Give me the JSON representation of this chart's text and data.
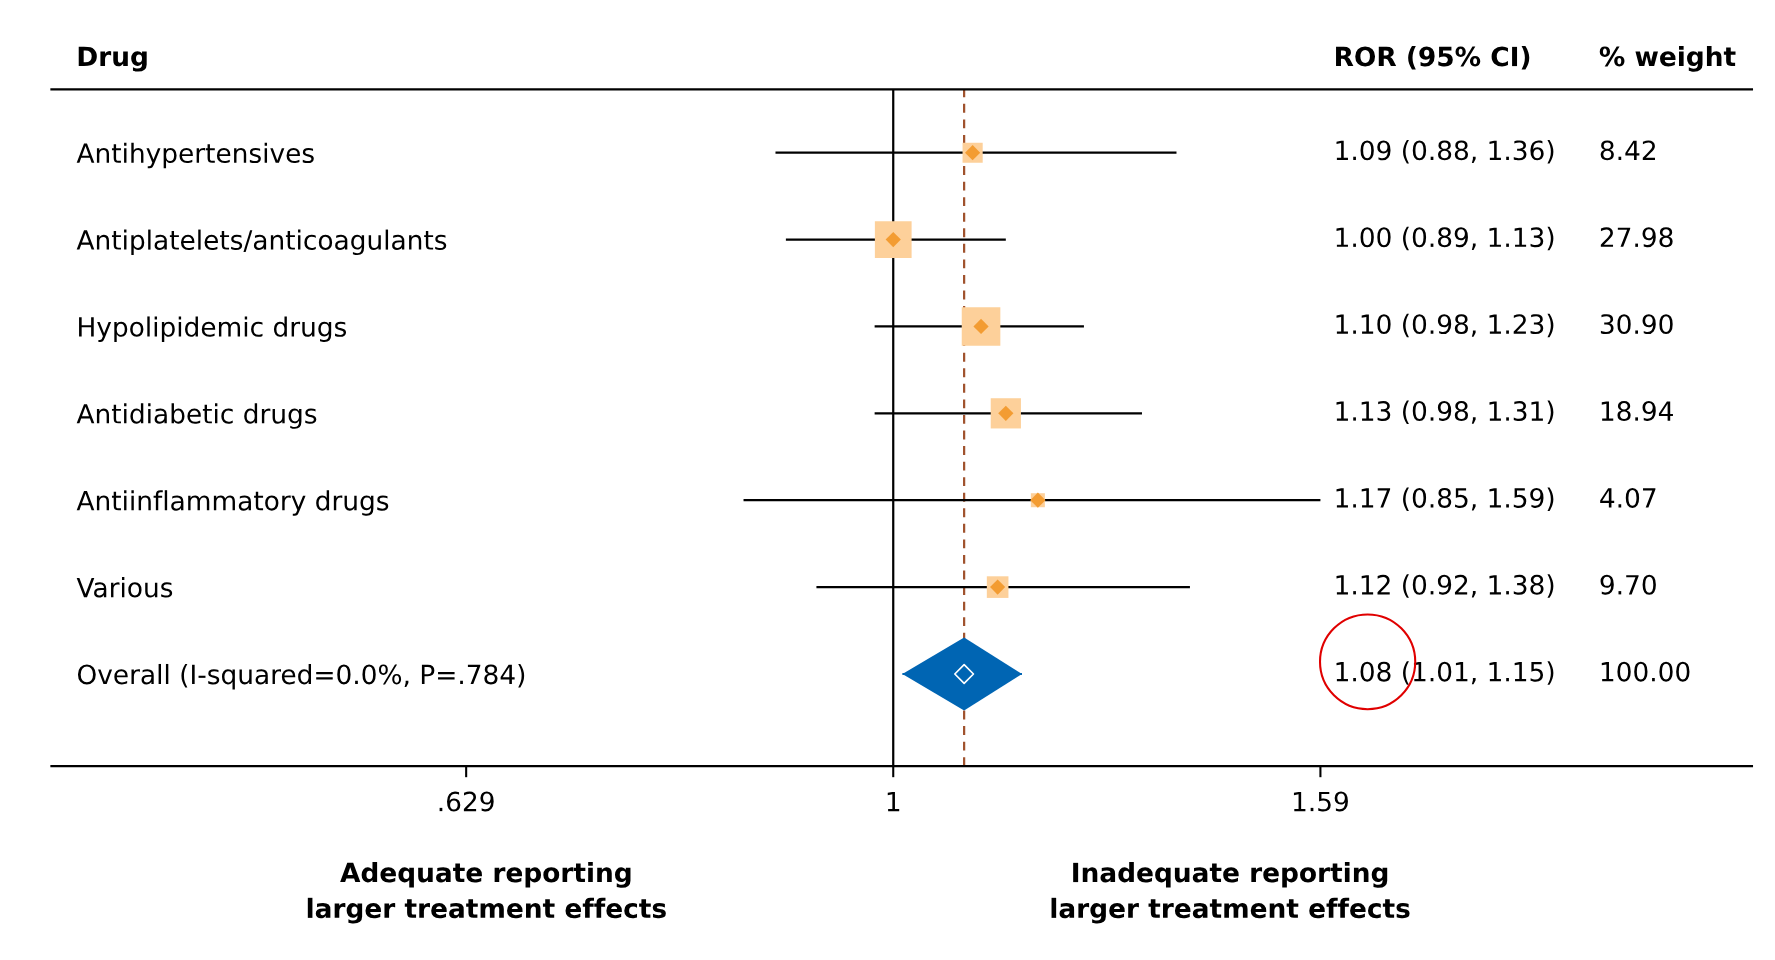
{
  "chart_data": {
    "type": "scatter",
    "orientation": "horizontal",
    "categories": [
      "Antihypertensives",
      "Antiplatelets/anticoagulants",
      "Hypolipidemic drugs",
      "Antidiabetic drugs",
      "Antiinflammatory drugs",
      "Various",
      "Overall (I-squared=0.0%, P=.784)"
    ],
    "series": [
      {
        "color": "#f39c32",
        "values": [
          1.09,
          1.0,
          1.1,
          1.13,
          1.17,
          1.12,
          null
        ],
        "marker": "diamond",
        "errors": [
          [
            0.88,
            1.36
          ],
          [
            0.89,
            1.13
          ],
          [
            0.98,
            1.23
          ],
          [
            0.98,
            1.31
          ],
          [
            0.85,
            1.59
          ],
          [
            0.92,
            1.38
          ],
          null
        ]
      },
      {
        "color": "#0065b3",
        "values": [
          null,
          null,
          null,
          null,
          null,
          null,
          1.08
        ],
        "marker": "diamond",
        "errors": [
          null,
          null,
          null,
          null,
          null,
          null,
          [
            1.01,
            1.15
          ]
        ]
      }
    ],
    "log": "x",
    "xlim": [
      0.401,
      2.54
    ],
    "xticks": [
      {
        "value": 0.629,
        "label": ".629"
      },
      1,
      {
        "value": 1.59,
        "label": "1.59"
      }
    ],
    "ref_lines": [
      {
        "axis": "x",
        "value": 1,
        "color": "#000000",
        "line_style": "solid"
      },
      {
        "axis": "x",
        "value": 1.08,
        "color": "#a0522d",
        "line_style": "dashed"
      }
    ],
    "grid": false,
    "annotations": [
      "Drug",
      "ROR (95% CI)",
      "% weight",
      "1.09 (0.88, 1.36)",
      "1.00 (0.89, 1.13)",
      "1.10 (0.98, 1.23)",
      "1.13 (0.98, 1.31)",
      "1.17 (0.85, 1.59)",
      "1.12 (0.92, 1.38)",
      "1.08 (1.01, 1.15)",
      "8.42",
      "27.98",
      "30.90",
      "18.94",
      "4.07",
      "9.70",
      "100.00",
      "Adequate reporting\nlarger treatment effects",
      "Inadequate reporting\nlarger treatment effects"
    ]
  }
}
